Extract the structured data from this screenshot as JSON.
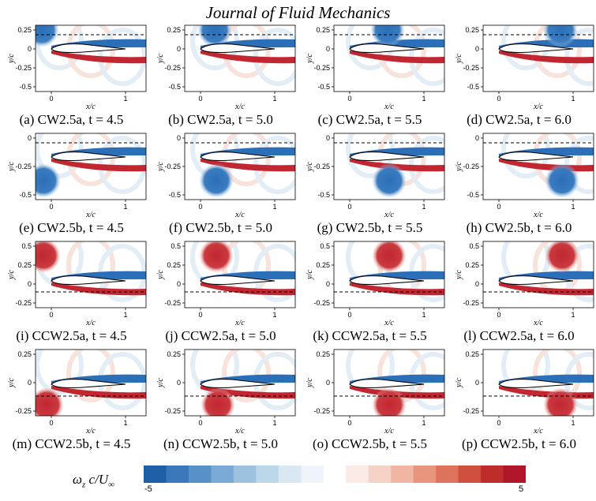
{
  "header": {
    "journal": "Journal of Fluid Mechanics"
  },
  "axes": {
    "xlabel": "x/c",
    "ylabel": "y/c"
  },
  "panels": [
    {
      "caption": "(a) CW2.5a, t = 4.5",
      "case": "CW2.5a",
      "t": 4.5,
      "yticks": [
        "0.25",
        "0",
        "-0.25",
        "-0.5"
      ],
      "xticks": [
        "0",
        "1"
      ]
    },
    {
      "caption": "(b) CW2.5a, t = 5.0",
      "case": "CW2.5a",
      "t": 5.0,
      "yticks": [
        "0.25",
        "0",
        "-0.25",
        "-0.5"
      ],
      "xticks": [
        "0",
        "1"
      ]
    },
    {
      "caption": "(c) CW2.5a, t = 5.5",
      "case": "CW2.5a",
      "t": 5.5,
      "yticks": [
        "0.25",
        "0",
        "-0.25",
        "-0.5"
      ],
      "xticks": [
        "0",
        "1"
      ]
    },
    {
      "caption": "(d) CW2.5a, t = 6.0",
      "case": "CW2.5a",
      "t": 6.0,
      "yticks": [
        "0.25",
        "0",
        "-0.25",
        "-0.5"
      ],
      "xticks": [
        "0",
        "1"
      ]
    },
    {
      "caption": "(e) CW2.5b, t = 4.5",
      "case": "CW2.5b",
      "t": 4.5,
      "yticks": [
        "0",
        "-0.25",
        "-0.5"
      ],
      "xticks": [
        "0",
        "1"
      ]
    },
    {
      "caption": "(f) CW2.5b, t = 5.0",
      "case": "CW2.5b",
      "t": 5.0,
      "yticks": [
        "0",
        "-0.25",
        "-0.5"
      ],
      "xticks": [
        "0",
        "1"
      ]
    },
    {
      "caption": "(g) CW2.5b, t = 5.5",
      "case": "CW2.5b",
      "t": 5.5,
      "yticks": [
        "0",
        "-0.25",
        "-0.5"
      ],
      "xticks": [
        "0",
        "1"
      ]
    },
    {
      "caption": "(h) CW2.5b, t = 6.0",
      "case": "CW2.5b",
      "t": 6.0,
      "yticks": [
        "0",
        "-0.25",
        "-0.5"
      ],
      "xticks": [
        "0",
        "1"
      ]
    },
    {
      "caption": "(i) CCW2.5a, t = 4.5",
      "case": "CCW2.5a",
      "t": 4.5,
      "yticks": [
        "0.5",
        "0.25",
        "0",
        "-0.25"
      ],
      "xticks": [
        "0",
        "1"
      ]
    },
    {
      "caption": "(j) CCW2.5a, t = 5.0",
      "case": "CCW2.5a",
      "t": 5.0,
      "yticks": [
        "0.5",
        "0.25",
        "0",
        "-0.25"
      ],
      "xticks": [
        "0",
        "1"
      ]
    },
    {
      "caption": "(k) CCW2.5a, t = 5.5",
      "case": "CCW2.5a",
      "t": 5.5,
      "yticks": [
        "0.5",
        "0.25",
        "0",
        "-0.25"
      ],
      "xticks": [
        "0",
        "1"
      ]
    },
    {
      "caption": "(l) CCW2.5a, t = 6.0",
      "case": "CCW2.5a",
      "t": 6.0,
      "yticks": [
        "0.5",
        "0.25",
        "0",
        "-0.25"
      ],
      "xticks": [
        "0",
        "1"
      ]
    },
    {
      "caption": "(m) CCW2.5b, t = 4.5",
      "case": "CCW2.5b",
      "t": 4.5,
      "yticks": [
        "0.25",
        "0",
        "-0.25"
      ],
      "xticks": [
        "0",
        "1"
      ]
    },
    {
      "caption": "(n) CCW2.5b, t = 5.0",
      "case": "CCW2.5b",
      "t": 5.0,
      "yticks": [
        "0.25",
        "0",
        "-0.25"
      ],
      "xticks": [
        "0",
        "1"
      ]
    },
    {
      "caption": "(o) CCW2.5b, t = 5.5",
      "case": "CCW2.5b",
      "t": 5.5,
      "yticks": [
        "0.25",
        "0",
        "-0.25"
      ],
      "xticks": [
        "0",
        "1"
      ]
    },
    {
      "caption": "(p) CCW2.5b, t = 6.0",
      "case": "CCW2.5b",
      "t": 6.0,
      "yticks": [
        "0.25",
        "0",
        "-0.25"
      ],
      "xticks": [
        "0",
        "1"
      ]
    }
  ],
  "colorbar": {
    "label": "ω_z c/U_∞",
    "min": "-5",
    "max": "5",
    "colors": [
      "#1f5fa8",
      "#3a78bb",
      "#5891c8",
      "#79a9d4",
      "#9cc2e0",
      "#bcd6ea",
      "#d8e7f2",
      "#eef4f9",
      "#ffffff",
      "#fbeae5",
      "#f6d2c6",
      "#f0b6a3",
      "#e8957e",
      "#dd735c",
      "#cf4f3f",
      "#bf2c2c",
      "#b0162a"
    ]
  },
  "colors": {
    "positive": "#c22631",
    "negative": "#2a6fb8",
    "background": "#ffffff"
  }
}
